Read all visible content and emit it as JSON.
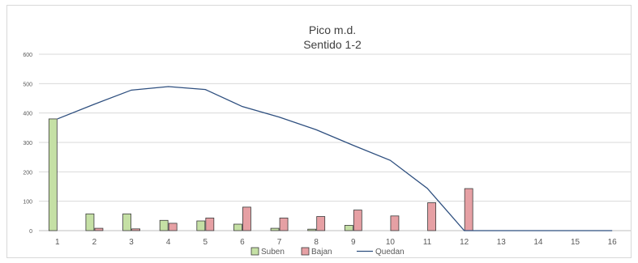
{
  "chart_data": {
    "type": "bar",
    "title": "Pico m.d.",
    "subtitle": "Sentido 1-2",
    "xlabel": "",
    "ylabel": "",
    "ylim": [
      0,
      600
    ],
    "yticks": [
      0,
      100,
      200,
      300,
      400,
      500,
      600
    ],
    "categories": [
      "1",
      "2",
      "3",
      "4",
      "5",
      "6",
      "7",
      "8",
      "9",
      "10",
      "11",
      "12",
      "13",
      "14",
      "15",
      "16"
    ],
    "series": [
      {
        "name": "Suben",
        "kind": "bar",
        "color": "#c5e0a5",
        "stroke": "#3a3a3a",
        "values": [
          380,
          57,
          57,
          35,
          33,
          22,
          8,
          5,
          18,
          0,
          0,
          0,
          0,
          0,
          0,
          0
        ]
      },
      {
        "name": "Bajan",
        "kind": "bar",
        "color": "#e6a0a4",
        "stroke": "#3a3a3a",
        "values": [
          0,
          8,
          6,
          25,
          43,
          80,
          43,
          48,
          70,
          50,
          95,
          143,
          0,
          0,
          0,
          0
        ]
      },
      {
        "name": "Quedan",
        "kind": "line",
        "color": "#2e4f7f",
        "values": [
          380,
          430,
          478,
          490,
          480,
          422,
          386,
          343,
          290,
          239,
          144,
          0,
          0,
          0,
          0,
          0
        ]
      }
    ],
    "grid": true,
    "legend_position": "bottom"
  }
}
